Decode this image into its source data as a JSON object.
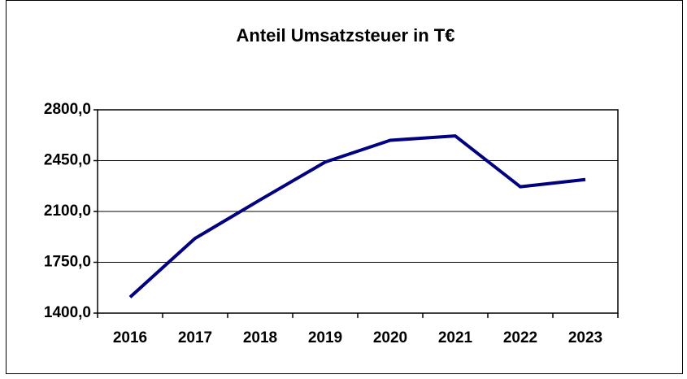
{
  "chart_data": {
    "type": "line",
    "title": "Anteil Umsatzsteuer in T€",
    "categories": [
      "2016",
      "2017",
      "2018",
      "2019",
      "2020",
      "2021",
      "2022",
      "2023"
    ],
    "series": [
      {
        "name": "Umsatzsteuer",
        "color": "#000080",
        "values": [
          1510,
          1915,
          2180,
          2440,
          2590,
          2620,
          2270,
          2320
        ]
      }
    ],
    "ylim": [
      1400,
      2800
    ],
    "yticks": [
      {
        "value": 1400,
        "label": "1400,0"
      },
      {
        "value": 1750,
        "label": "1750,0"
      },
      {
        "value": 2100,
        "label": "2100,0"
      },
      {
        "value": 2450,
        "label": "2450,0"
      },
      {
        "value": 2800,
        "label": "2800,0"
      }
    ],
    "grid": true
  }
}
